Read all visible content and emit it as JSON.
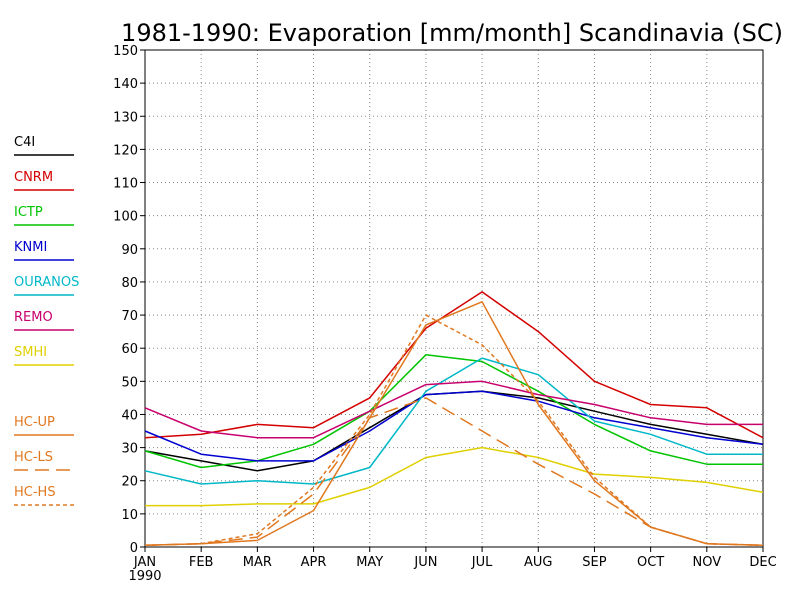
{
  "chart_data": {
    "type": "line",
    "title": "1981-1990: Evaporation [mm/month] Scandinavia (SC)",
    "xlabel": "",
    "ylabel": "",
    "categories": [
      "JAN",
      "FEB",
      "MAR",
      "APR",
      "MAY",
      "JUN",
      "JUL",
      "AUG",
      "SEP",
      "OCT",
      "NOV",
      "DEC"
    ],
    "first_category_sublabel": "1990",
    "ylim": [
      0,
      150
    ],
    "yticks": [
      "0",
      "10",
      "20",
      "30",
      "40",
      "50",
      "60",
      "70",
      "80",
      "90",
      "100",
      "110",
      "120",
      "130",
      "140",
      "150"
    ],
    "grid": true,
    "legend_placement": "left",
    "series": [
      {
        "name": "C4I",
        "color": "#000000",
        "dash": "solid",
        "values": [
          29,
          26,
          23,
          26,
          36,
          46,
          47,
          45,
          41,
          37,
          34,
          31
        ]
      },
      {
        "name": "CNRM",
        "color": "#d40000",
        "dash": "solid",
        "values": [
          33,
          34,
          37,
          36,
          45,
          66,
          77,
          65,
          50,
          43,
          42,
          33
        ]
      },
      {
        "name": "ICTP",
        "color": "#00c400",
        "dash": "solid",
        "values": [
          29,
          24,
          26,
          31,
          41,
          58,
          56,
          47,
          37,
          29,
          25,
          25
        ]
      },
      {
        "name": "KNMI",
        "color": "#0000d0",
        "dash": "solid",
        "values": [
          35,
          28,
          26,
          26,
          35,
          46,
          47,
          44,
          39,
          36,
          33,
          31
        ]
      },
      {
        "name": "OURANOS",
        "color": "#00b8c8",
        "dash": "solid",
        "values": [
          23,
          19,
          20,
          19,
          24,
          47,
          57,
          52,
          38,
          34,
          28,
          28
        ]
      },
      {
        "name": "REMO",
        "color": "#c8006e",
        "dash": "solid",
        "values": [
          42,
          35,
          33,
          33,
          41,
          49,
          50,
          46,
          43,
          39,
          37,
          37
        ]
      },
      {
        "name": "SMHI",
        "color": "#e0d000",
        "dash": "solid",
        "values": [
          12.5,
          12.5,
          13,
          13,
          18,
          27,
          30,
          27,
          22,
          21,
          19.5,
          16.5
        ]
      },
      {
        "name": "HC-UP",
        "color": "#e07820",
        "dash": "solid",
        "values": [
          0.5,
          1,
          2,
          11,
          39,
          67,
          74,
          43,
          20,
          6,
          1,
          0.5
        ]
      },
      {
        "name": "HC-LS",
        "color": "#e07820",
        "dash": "longdash",
        "values": [
          0.5,
          1,
          3,
          16,
          39,
          45,
          35,
          25,
          16,
          6,
          1,
          0.5
        ]
      },
      {
        "name": "HC-HS",
        "color": "#e07820",
        "dash": "shortdash",
        "values": [
          0.5,
          1,
          4,
          18,
          40,
          70,
          61,
          44,
          21,
          6,
          1,
          0.5
        ]
      }
    ]
  }
}
